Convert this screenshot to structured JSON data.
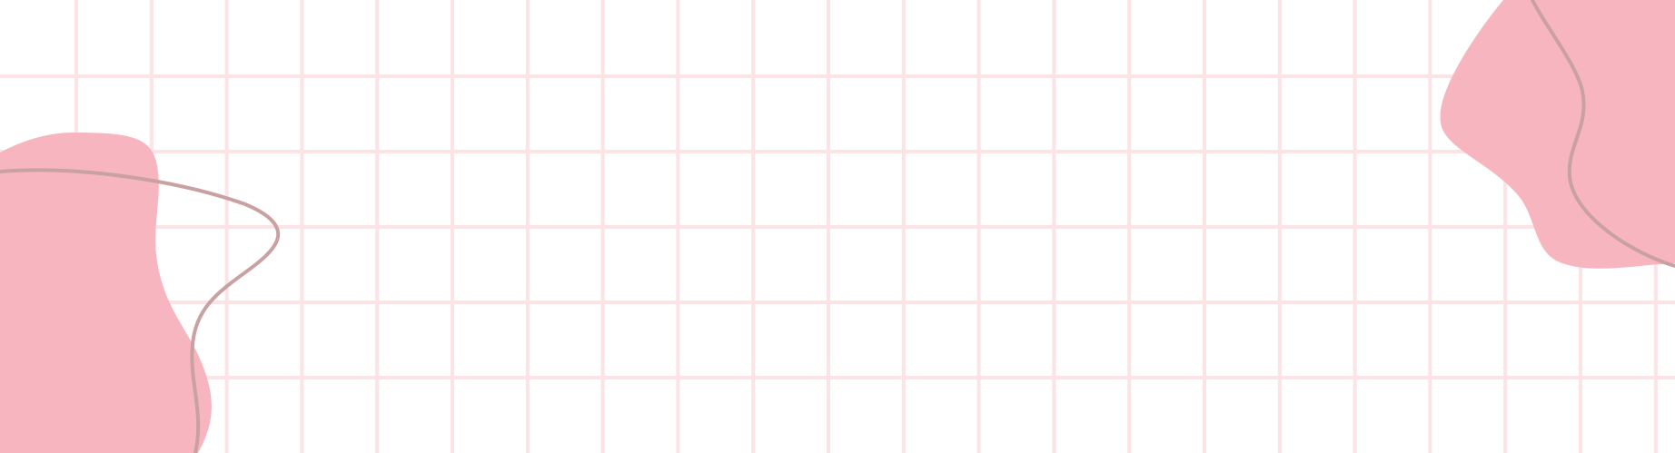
{
  "colors": {
    "background": "#ffffff",
    "grid_line": "#fbe3e6",
    "grid_line_accent": "#f6cdd3",
    "blob_fill": "#f7b6bf",
    "curve_stroke": "#c9a1a3"
  },
  "decorations": {
    "grid": "pink-grid-pattern",
    "left_blob": "blob-shape",
    "right_blob": "blob-shape",
    "curves": "squiggle-line"
  }
}
